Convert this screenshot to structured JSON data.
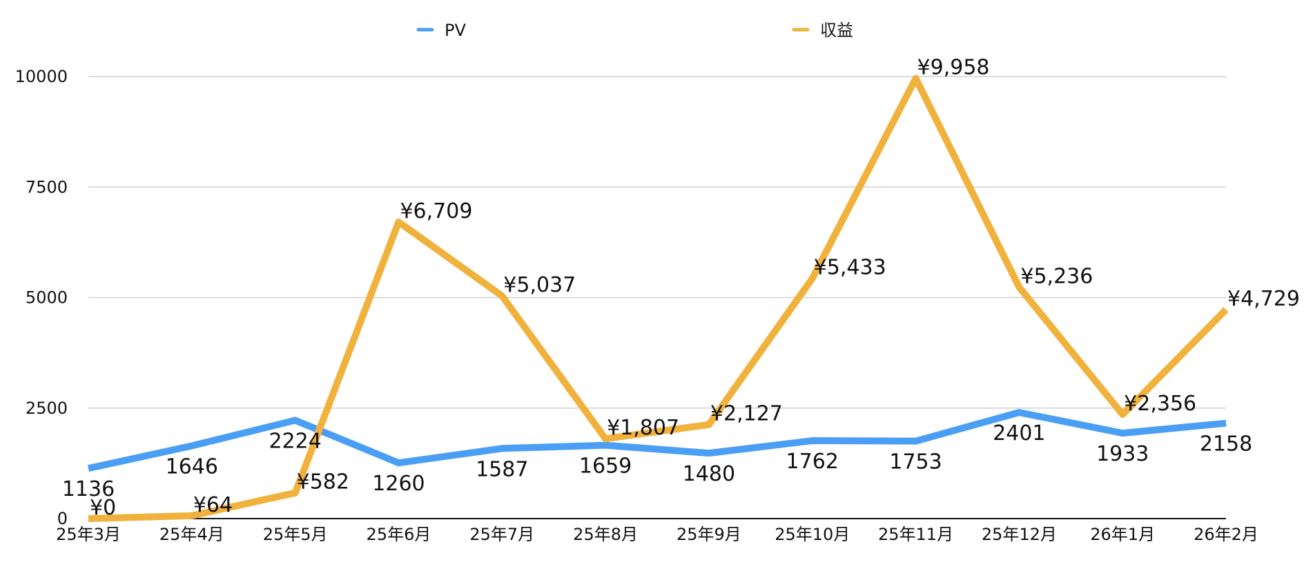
{
  "chart_data": {
    "type": "line",
    "categories": [
      "25年3月",
      "25年4月",
      "25年5月",
      "25年6月",
      "25年7月",
      "25年8月",
      "25年9月",
      "25年10月",
      "25年11月",
      "25年12月",
      "26年1月",
      "26年2月"
    ],
    "series": [
      {
        "name": "PV",
        "color": "#4a9ff5",
        "values": [
          1136,
          1646,
          2224,
          1260,
          1587,
          1659,
          1480,
          1762,
          1753,
          2401,
          1933,
          2158
        ],
        "labels": [
          "1136",
          "1646",
          "2224",
          "1260",
          "1587",
          "1659",
          "1480",
          "1762",
          "1753",
          "2401",
          "1933",
          "2158"
        ]
      },
      {
        "name": "収益",
        "color": "#f0b23c",
        "values": [
          0,
          64,
          582,
          6709,
          5037,
          1807,
          2127,
          5433,
          9958,
          5236,
          2356,
          4729
        ],
        "labels": [
          "¥0",
          "¥64",
          "¥582",
          "¥6,709",
          "¥5,037",
          "¥1,807",
          "¥2,127",
          "¥5,433",
          "¥9,958",
          "¥5,236",
          "¥2,356",
          "¥4,729"
        ]
      }
    ],
    "y_ticks": [
      "0",
      "2500",
      "5000",
      "7500",
      "10000"
    ],
    "ylim": [
      0,
      10000
    ],
    "grid": true,
    "legend_position": "top"
  }
}
